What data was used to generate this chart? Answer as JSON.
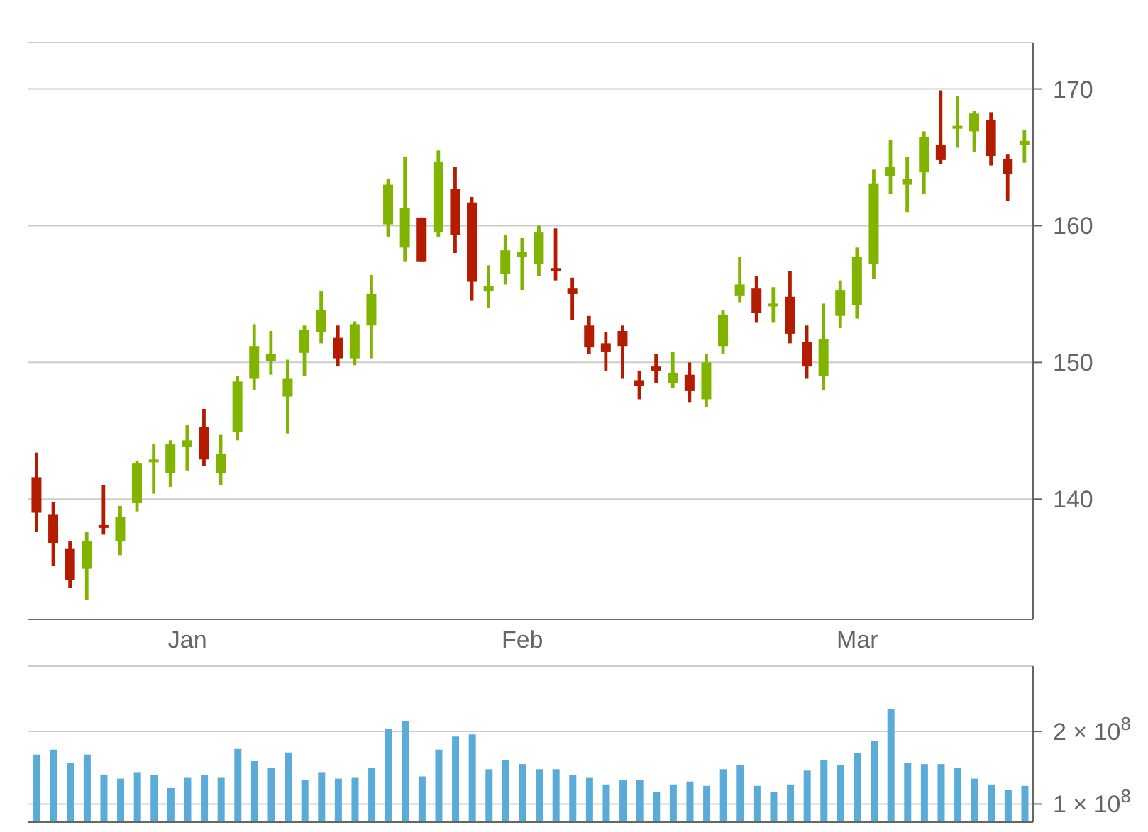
{
  "chart_data": [
    {
      "type": "candlestick",
      "categories": [
        null,
        null,
        null,
        null,
        null,
        null,
        null,
        null,
        null,
        "Jan",
        null,
        null,
        null,
        null,
        null,
        null,
        null,
        null,
        null,
        null,
        null,
        null,
        null,
        null,
        null,
        null,
        null,
        null,
        null,
        "Feb",
        null,
        null,
        null,
        null,
        null,
        null,
        null,
        null,
        null,
        null,
        null,
        null,
        null,
        null,
        null,
        null,
        null,
        null,
        null,
        "Mar",
        null,
        null,
        null,
        null,
        null,
        null,
        null,
        null,
        null,
        null
      ],
      "ohlc": [
        [
          141.6,
          143.4,
          137.6,
          139.0
        ],
        [
          138.9,
          139.8,
          135.1,
          136.8
        ],
        [
          136.4,
          136.9,
          133.5,
          134.1
        ],
        [
          134.9,
          137.6,
          132.6,
          136.9
        ],
        [
          138.1,
          141.0,
          137.4,
          137.9
        ],
        [
          136.9,
          139.5,
          135.9,
          138.7
        ],
        [
          139.7,
          142.8,
          139.1,
          142.6
        ],
        [
          142.7,
          144.0,
          140.4,
          142.9
        ],
        [
          141.9,
          144.3,
          140.9,
          144.0
        ],
        [
          143.8,
          145.4,
          142.1,
          144.3
        ],
        [
          145.3,
          146.6,
          142.4,
          142.9
        ],
        [
          141.9,
          144.7,
          141.0,
          143.3
        ],
        [
          144.9,
          149.0,
          144.3,
          148.6
        ],
        [
          148.8,
          152.8,
          148.0,
          151.2
        ],
        [
          150.1,
          152.3,
          149.1,
          150.6
        ],
        [
          147.5,
          150.2,
          144.8,
          148.8
        ],
        [
          150.7,
          152.7,
          149.0,
          152.4
        ],
        [
          152.2,
          155.2,
          151.4,
          153.8
        ],
        [
          151.8,
          152.7,
          149.7,
          150.3
        ],
        [
          150.3,
          153.0,
          149.8,
          152.8
        ],
        [
          152.7,
          156.4,
          150.3,
          155.0
        ],
        [
          160.1,
          163.4,
          159.2,
          163.0
        ],
        [
          158.4,
          165.0,
          157.4,
          161.3
        ],
        [
          160.6,
          160.6,
          157.4,
          157.4
        ],
        [
          159.5,
          165.5,
          159.2,
          164.7
        ],
        [
          162.7,
          164.3,
          158.0,
          159.3
        ],
        [
          161.7,
          162.1,
          154.5,
          155.9
        ],
        [
          155.2,
          157.1,
          154.0,
          155.6
        ],
        [
          156.5,
          159.3,
          155.7,
          158.2
        ],
        [
          157.7,
          159.1,
          155.3,
          158.1
        ],
        [
          157.2,
          160.0,
          156.3,
          159.5
        ],
        [
          156.9,
          159.8,
          156.0,
          156.8
        ],
        [
          155.4,
          156.2,
          153.1,
          155.0
        ],
        [
          152.7,
          153.4,
          150.6,
          151.1
        ],
        [
          151.4,
          152.2,
          149.4,
          150.8
        ],
        [
          152.3,
          152.7,
          148.8,
          151.2
        ],
        [
          148.7,
          149.4,
          147.3,
          148.3
        ],
        [
          149.7,
          150.6,
          148.5,
          149.4
        ],
        [
          148.5,
          150.8,
          148.1,
          149.2
        ],
        [
          149.1,
          150.0,
          147.1,
          147.9
        ],
        [
          147.3,
          150.6,
          146.7,
          150.0
        ],
        [
          151.2,
          153.8,
          150.6,
          153.5
        ],
        [
          154.9,
          157.7,
          154.4,
          155.7
        ],
        [
          155.4,
          156.3,
          152.9,
          153.6
        ],
        [
          154.2,
          155.5,
          152.9,
          154.3
        ],
        [
          154.8,
          156.7,
          151.4,
          152.1
        ],
        [
          151.5,
          152.7,
          148.8,
          149.7
        ],
        [
          149.0,
          154.3,
          148.0,
          151.7
        ],
        [
          153.4,
          156.0,
          152.5,
          155.3
        ],
        [
          154.2,
          158.4,
          153.2,
          157.7
        ],
        [
          157.2,
          164.1,
          156.1,
          163.1
        ],
        [
          163.6,
          166.3,
          162.3,
          164.3
        ],
        [
          163.0,
          165.0,
          161.0,
          163.4
        ],
        [
          163.9,
          166.9,
          162.3,
          166.5
        ],
        [
          165.9,
          169.9,
          164.5,
          164.8
        ],
        [
          167.1,
          169.5,
          165.7,
          167.3
        ],
        [
          166.9,
          168.4,
          165.4,
          168.2
        ],
        [
          167.7,
          168.3,
          164.4,
          165.1
        ],
        [
          164.9,
          165.2,
          161.8,
          163.8
        ],
        [
          165.9,
          167.0,
          164.6,
          166.2
        ]
      ],
      "colors": [
        "#b41c00",
        "#b41c00",
        "#b41c00",
        "#80b400",
        "#b41c00",
        "#80b400",
        "#80b400",
        "#80b400",
        "#80b400",
        "#80b400",
        "#b41c00",
        "#80b400",
        "#80b400",
        "#80b400",
        "#80b400",
        "#80b400",
        "#80b400",
        "#80b400",
        "#b41c00",
        "#80b400",
        "#80b400",
        "#80b400",
        "#80b400",
        "#b41c00",
        "#80b400",
        "#b41c00",
        "#b41c00",
        "#80b400",
        "#80b400",
        "#80b400",
        "#80b400",
        "#b41c00",
        "#b41c00",
        "#b41c00",
        "#b41c00",
        "#b41c00",
        "#b41c00",
        "#b41c00",
        "#80b400",
        "#b41c00",
        "#80b400",
        "#80b400",
        "#80b400",
        "#b41c00",
        "#80b400",
        "#b41c00",
        "#b41c00",
        "#80b400",
        "#80b400",
        "#80b400",
        "#80b400",
        "#80b400",
        "#80b400",
        "#80b400",
        "#b41c00",
        "#80b400",
        "#80b400",
        "#b41c00",
        "#b41c00",
        "#80b400"
      ],
      "ylim": [
        131.2,
        173.4
      ],
      "yticks": [
        140,
        150,
        160,
        170
      ],
      "grid": "y"
    },
    {
      "type": "bar",
      "categories": [
        null,
        null,
        null,
        null,
        null,
        null,
        null,
        null,
        null,
        null,
        null,
        null,
        null,
        null,
        null,
        null,
        null,
        null,
        null,
        null,
        null,
        null,
        null,
        null,
        null,
        null,
        null,
        null,
        null,
        null,
        null,
        null,
        null,
        null,
        null,
        null,
        null,
        null,
        null,
        null,
        null,
        null,
        null,
        null,
        null,
        null,
        null,
        null,
        null,
        null,
        null,
        null,
        null,
        null,
        null,
        null,
        null,
        null,
        null,
        null
      ],
      "values": [
        168000000,
        175000000,
        157000000,
        168000000,
        140000000,
        135000000,
        143000000,
        140000000,
        122000000,
        136000000,
        140000000,
        136000000,
        176000000,
        159000000,
        150000000,
        171000000,
        133000000,
        143000000,
        135000000,
        136000000,
        150000000,
        203000000,
        214000000,
        138000000,
        175000000,
        193000000,
        196000000,
        148000000,
        161000000,
        155000000,
        148000000,
        148000000,
        140000000,
        136000000,
        127000000,
        133000000,
        133000000,
        117000000,
        127000000,
        131000000,
        125000000,
        148000000,
        154000000,
        125000000,
        117000000,
        127000000,
        146000000,
        161000000,
        154000000,
        170000000,
        187000000,
        231000000,
        157000000,
        155000000,
        155000000,
        150000000,
        135000000,
        127000000,
        119000000,
        125000000
      ],
      "color": "#5aabd8",
      "ylim": [
        75000000,
        290000000
      ],
      "yticks": [
        {
          "value": 100000000,
          "label": "1 × 10$^{8}$"
        },
        {
          "value": 200000000,
          "label": "2 × 10$^{8}$"
        }
      ],
      "grid": "y",
      "tick_labels": "y"
    }
  ]
}
